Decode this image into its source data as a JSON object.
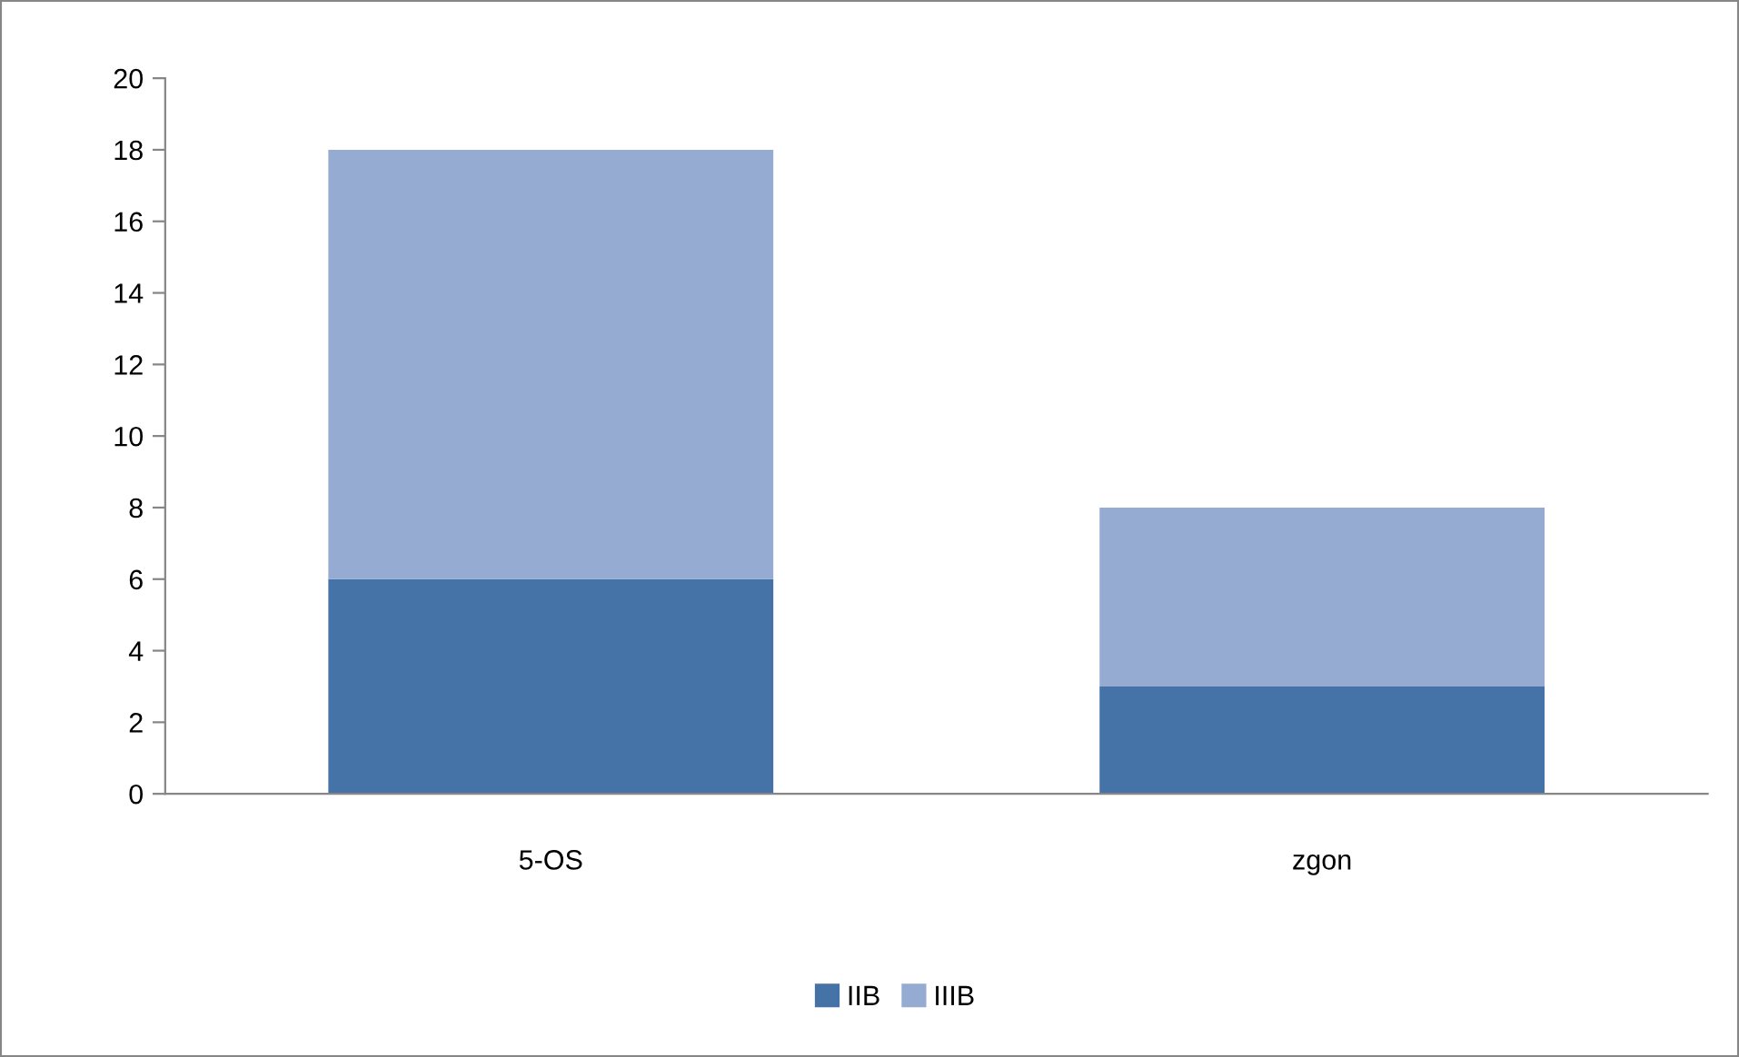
{
  "chart_data": {
    "type": "bar",
    "stacked": true,
    "categories": [
      "5-OS",
      "zgon"
    ],
    "series": [
      {
        "name": "IIB",
        "color": "#4572a7",
        "values": [
          6,
          3
        ]
      },
      {
        "name": "IIIB",
        "color": "#96abd2",
        "values": [
          12,
          5
        ]
      }
    ],
    "ylim": [
      0,
      20
    ],
    "yticks": [
      0,
      2,
      4,
      6,
      8,
      10,
      12,
      14,
      16,
      18,
      20
    ],
    "grid": false,
    "legend": "bottom"
  }
}
